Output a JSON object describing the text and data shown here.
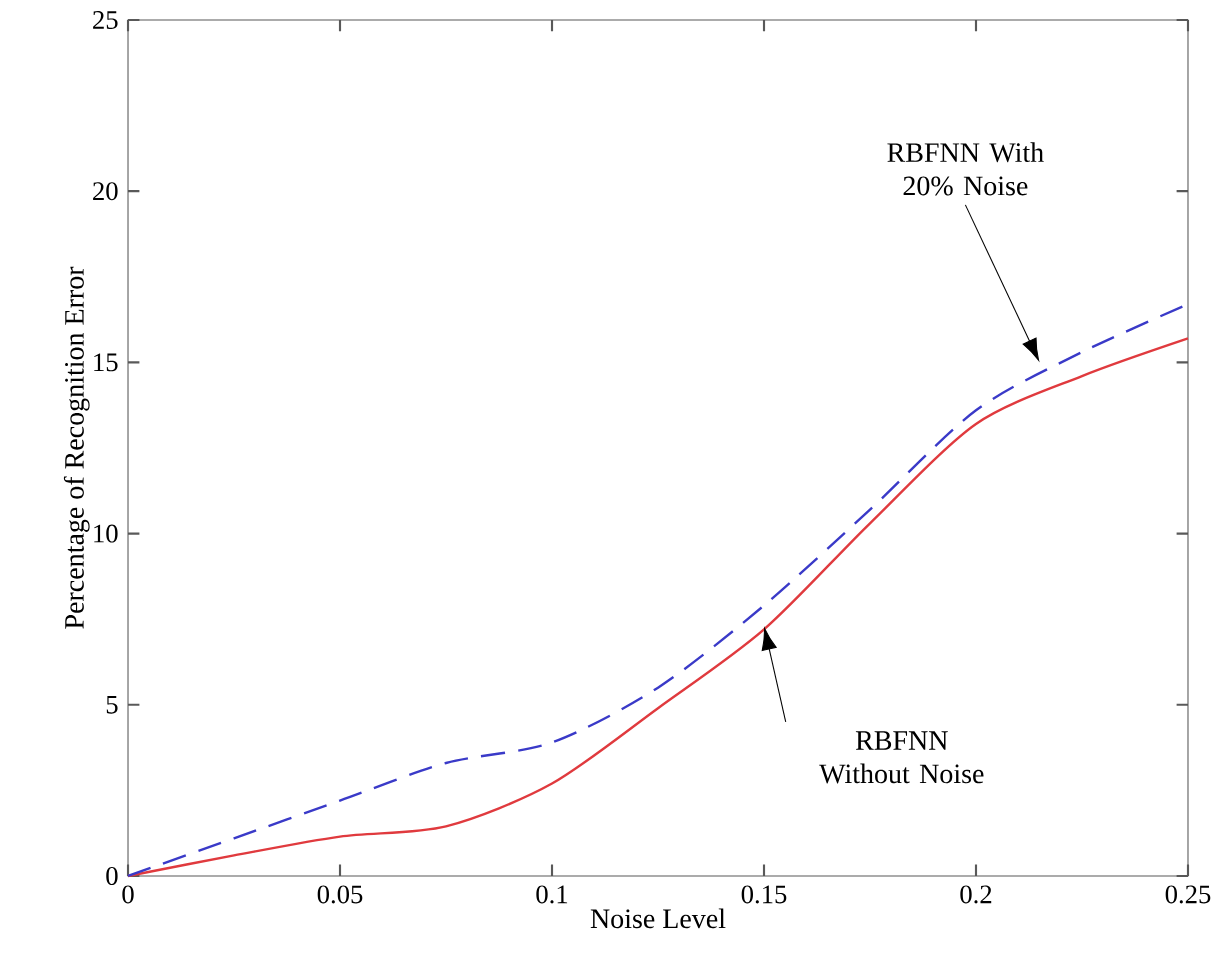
{
  "chart_data": {
    "type": "line",
    "xlabel": "Noise Level",
    "ylabel": "Percentage of Recognition Error",
    "x": [
      0,
      0.025,
      0.05,
      0.075,
      0.1,
      0.125,
      0.15,
      0.175,
      0.2,
      0.225,
      0.25
    ],
    "series": [
      {
        "color": "#e03a3e",
        "line_style": "solid",
        "values": [
          0,
          0.6,
          1.15,
          1.45,
          2.7,
          4.9,
          7.2,
          10.3,
          13.2,
          14.6,
          15.7
        ]
      },
      {
        "color": "#3a3ac8",
        "line_style": "dashed",
        "values": [
          0,
          1.1,
          2.2,
          3.3,
          3.9,
          5.5,
          7.9,
          10.7,
          13.6,
          15.3,
          16.7
        ]
      }
    ],
    "xlim": [
      0,
      0.25
    ],
    "ylim": [
      0,
      25
    ],
    "xticks": [
      0,
      0.05,
      0.1,
      0.15,
      0.2,
      0.25
    ],
    "yticks": [
      0,
      5,
      10,
      15,
      20,
      25
    ],
    "grid": false,
    "marker": "none",
    "annotations": [
      "RBFNN With 20% Noise",
      "RBFNN Without Noise"
    ]
  }
}
